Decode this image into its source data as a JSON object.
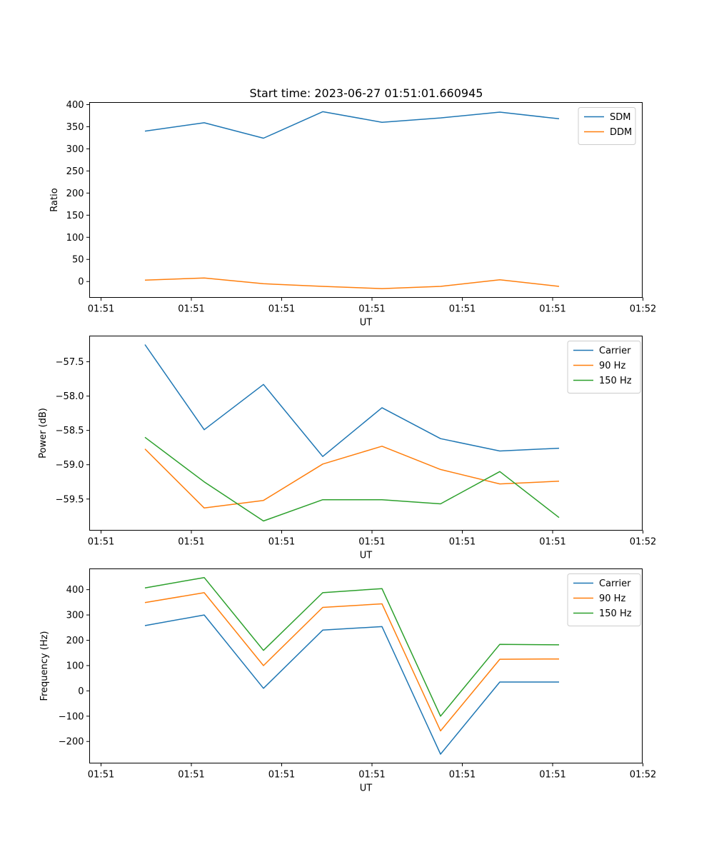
{
  "figure": {
    "title": "Start time: 2023-06-27 01:51:01.660945"
  },
  "colors": {
    "blue": "#1f77b4",
    "orange": "#ff7f0e",
    "green": "#2ca02c"
  },
  "chart_data": [
    {
      "type": "line",
      "title": "Start time: 2023-06-27 01:51:01.660945",
      "xlabel": "UT",
      "ylabel": "Ratio",
      "x_tick_labels": [
        "01:51",
        "01:51",
        "01:51",
        "01:51",
        "01:51",
        "01:51",
        "01:52"
      ],
      "yticks": [
        0,
        50,
        100,
        150,
        200,
        250,
        300,
        350,
        400
      ],
      "ytick_labels": [
        "0",
        "50",
        "100",
        "150",
        "200",
        "250",
        "300",
        "350",
        "400"
      ],
      "ylim": [
        -36.0,
        404.8
      ],
      "legend_position": "top-right",
      "series": [
        {
          "name": "SDM",
          "color": "#1f77b4",
          "values": [
            340,
            359,
            324,
            384,
            360,
            370,
            383,
            368
          ]
        },
        {
          "name": "DDM",
          "color": "#ff7f0e",
          "values": [
            3,
            8,
            -5,
            -11,
            -16,
            -11,
            4,
            -11
          ]
        }
      ]
    },
    {
      "type": "line",
      "title": "",
      "xlabel": "UT",
      "ylabel": "Power (dB)",
      "x_tick_labels": [
        "01:51",
        "01:51",
        "01:51",
        "01:51",
        "01:51",
        "01:51",
        "01:52"
      ],
      "yticks": [
        -57.5,
        -58.0,
        -58.5,
        -59.0,
        -59.5
      ],
      "ytick_labels": [
        "−57.5",
        "−58.0",
        "−58.5",
        "−59.0",
        "−59.5"
      ],
      "ylim": [
        -59.955,
        -57.125
      ],
      "legend_position": "top-right",
      "series": [
        {
          "name": "Carrier",
          "color": "#1f77b4",
          "values": [
            -57.25,
            -58.49,
            -57.83,
            -58.88,
            -58.17,
            -58.62,
            -58.8,
            -58.76
          ]
        },
        {
          "name": "90 Hz",
          "color": "#ff7f0e",
          "values": [
            -58.77,
            -59.63,
            -59.52,
            -58.99,
            -58.73,
            -59.07,
            -59.28,
            -59.24
          ]
        },
        {
          "name": "150 Hz",
          "color": "#2ca02c",
          "values": [
            -58.6,
            -59.25,
            -59.82,
            -59.51,
            -59.51,
            -59.57,
            -59.1,
            -59.77
          ]
        }
      ]
    },
    {
      "type": "line",
      "title": "",
      "xlabel": "UT",
      "ylabel": "Frequency (Hz)",
      "x_tick_labels": [
        "01:51",
        "01:51",
        "01:51",
        "01:51",
        "01:51",
        "01:51",
        "01:52"
      ],
      "yticks": [
        400,
        300,
        200,
        100,
        0,
        -100,
        -200
      ],
      "ytick_labels": [
        "400",
        "300",
        "200",
        "100",
        "0",
        "−100",
        "−200"
      ],
      "ylim": [
        -285.4,
        482.3
      ],
      "legend_position": "top-right",
      "series": [
        {
          "name": "Carrier",
          "color": "#1f77b4",
          "values": [
            258,
            300,
            10,
            240,
            254,
            -250,
            35,
            35
          ]
        },
        {
          "name": "90 Hz",
          "color": "#ff7f0e",
          "values": [
            349,
            388,
            100,
            330,
            344,
            -158,
            125,
            126
          ]
        },
        {
          "name": "150 Hz",
          "color": "#2ca02c",
          "values": [
            407,
            448,
            160,
            388,
            404,
            -100,
            184,
            182
          ]
        }
      ]
    }
  ]
}
